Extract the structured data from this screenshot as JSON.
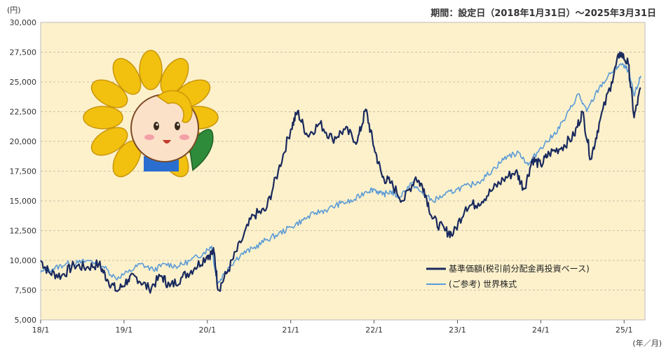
{
  "chart_data": {
    "type": "line",
    "y_unit": "(円)",
    "x_unit": "(年／月)",
    "period": "期間：設定日（2018年1月31日）～2025年3月31日",
    "ylim": [
      5000,
      30000
    ],
    "yticks": [
      5000,
      7500,
      10000,
      12500,
      15000,
      17500,
      20000,
      22500,
      25000,
      27500,
      30000
    ],
    "ytick_labels": [
      "5,000",
      "7,500",
      "10,000",
      "12,500",
      "15,000",
      "17,500",
      "20,000",
      "22,500",
      "25,000",
      "27,500",
      "30,000"
    ],
    "xlim": [
      2018.0,
      2025.25
    ],
    "xticks": [
      2018,
      2019,
      2020,
      2021,
      2022,
      2023,
      2024,
      2025
    ],
    "xtick_labels": [
      "18/1",
      "19/1",
      "20/1",
      "21/1",
      "22/1",
      "23/1",
      "24/1",
      "25/1"
    ],
    "grid": "horizontal dashed",
    "legend_position": "bottom-right",
    "series": [
      {
        "name": "基準価額(税引前分配金再投資ベース)",
        "color": "#1a2a5e",
        "points": [
          [
            2018.0,
            10000
          ],
          [
            2018.1,
            9000
          ],
          [
            2018.25,
            8700
          ],
          [
            2018.4,
            9600
          ],
          [
            2018.55,
            9400
          ],
          [
            2018.7,
            9700
          ],
          [
            2018.8,
            8400
          ],
          [
            2018.92,
            7400
          ],
          [
            2019.05,
            8400
          ],
          [
            2019.15,
            8600
          ],
          [
            2019.3,
            7600
          ],
          [
            2019.45,
            8700
          ],
          [
            2019.55,
            7800
          ],
          [
            2019.7,
            8600
          ],
          [
            2019.85,
            9400
          ],
          [
            2020.0,
            10400
          ],
          [
            2020.08,
            10700
          ],
          [
            2020.13,
            7500
          ],
          [
            2020.25,
            9200
          ],
          [
            2020.4,
            11500
          ],
          [
            2020.55,
            13800
          ],
          [
            2020.7,
            14200
          ],
          [
            2020.85,
            17500
          ],
          [
            2021.0,
            21000
          ],
          [
            2021.08,
            22500
          ],
          [
            2021.2,
            20500
          ],
          [
            2021.35,
            21500
          ],
          [
            2021.5,
            20200
          ],
          [
            2021.65,
            21000
          ],
          [
            2021.8,
            20000
          ],
          [
            2021.9,
            22700
          ],
          [
            2022.0,
            19500
          ],
          [
            2022.1,
            17000
          ],
          [
            2022.2,
            16500
          ],
          [
            2022.35,
            15000
          ],
          [
            2022.5,
            17000
          ],
          [
            2022.6,
            16000
          ],
          [
            2022.7,
            13500
          ],
          [
            2022.85,
            12500
          ],
          [
            2022.95,
            12200
          ],
          [
            2023.1,
            14500
          ],
          [
            2023.25,
            14800
          ],
          [
            2023.4,
            15800
          ],
          [
            2023.55,
            16800
          ],
          [
            2023.7,
            17500
          ],
          [
            2023.8,
            16000
          ],
          [
            2023.9,
            18500
          ],
          [
            2024.0,
            18000
          ],
          [
            2024.1,
            19000
          ],
          [
            2024.25,
            19500
          ],
          [
            2024.4,
            20500
          ],
          [
            2024.5,
            22500
          ],
          [
            2024.6,
            18500
          ],
          [
            2024.7,
            21500
          ],
          [
            2024.85,
            25000
          ],
          [
            2024.95,
            27500
          ],
          [
            2025.05,
            26500
          ],
          [
            2025.12,
            22000
          ],
          [
            2025.2,
            24500
          ]
        ]
      },
      {
        "name": "(ご参考) 世界株式",
        "color": "#5b9bd5",
        "points": [
          [
            2018.0,
            9000
          ],
          [
            2018.15,
            9300
          ],
          [
            2018.3,
            9700
          ],
          [
            2018.45,
            9800
          ],
          [
            2018.6,
            10000
          ],
          [
            2018.75,
            9500
          ],
          [
            2018.9,
            8500
          ],
          [
            2019.05,
            9000
          ],
          [
            2019.2,
            9700
          ],
          [
            2019.35,
            9200
          ],
          [
            2019.5,
            9700
          ],
          [
            2019.65,
            9500
          ],
          [
            2019.8,
            10000
          ],
          [
            2019.95,
            10600
          ],
          [
            2020.05,
            11200
          ],
          [
            2020.12,
            8000
          ],
          [
            2020.25,
            9400
          ],
          [
            2020.4,
            10500
          ],
          [
            2020.55,
            11000
          ],
          [
            2020.7,
            11700
          ],
          [
            2020.85,
            12200
          ],
          [
            2021.0,
            12800
          ],
          [
            2021.15,
            13400
          ],
          [
            2021.3,
            14000
          ],
          [
            2021.45,
            14300
          ],
          [
            2021.6,
            14800
          ],
          [
            2021.75,
            15000
          ],
          [
            2021.9,
            15800
          ],
          [
            2022.0,
            16000
          ],
          [
            2022.1,
            15500
          ],
          [
            2022.2,
            15800
          ],
          [
            2022.3,
            15300
          ],
          [
            2022.45,
            16500
          ],
          [
            2022.55,
            15800
          ],
          [
            2022.7,
            15000
          ],
          [
            2022.85,
            15500
          ],
          [
            2023.0,
            16000
          ],
          [
            2023.15,
            16300
          ],
          [
            2023.3,
            16800
          ],
          [
            2023.45,
            17800
          ],
          [
            2023.6,
            18800
          ],
          [
            2023.75,
            19000
          ],
          [
            2023.85,
            18000
          ],
          [
            2024.0,
            19500
          ],
          [
            2024.15,
            20500
          ],
          [
            2024.3,
            22000
          ],
          [
            2024.45,
            24000
          ],
          [
            2024.55,
            22500
          ],
          [
            2024.7,
            24500
          ],
          [
            2024.85,
            25800
          ],
          [
            2024.95,
            26500
          ],
          [
            2025.05,
            26000
          ],
          [
            2025.12,
            23800
          ],
          [
            2025.2,
            25500
          ]
        ]
      }
    ]
  },
  "mascot": {
    "name": "sunflower-character"
  }
}
